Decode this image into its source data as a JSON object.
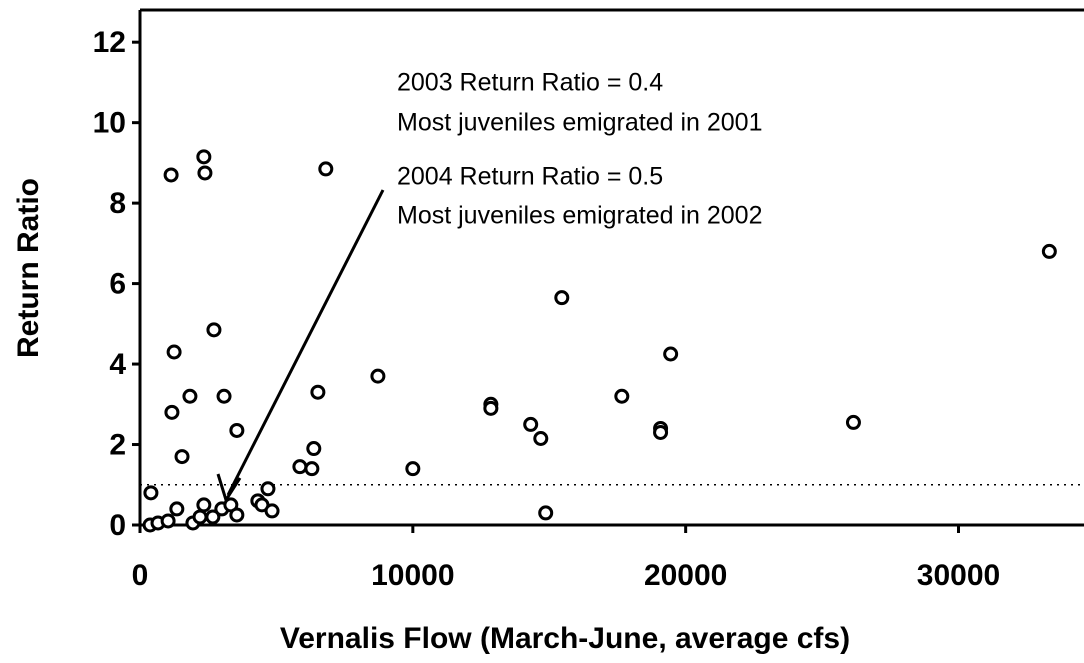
{
  "chart_data": {
    "type": "scatter",
    "x_label": "Vernalis Flow (March-June, average cfs)",
    "y_label": "Return Ratio",
    "annotations": [
      "2003 Return Ratio = 0.4",
      "Most juveniles emigrated in 2001",
      "2004 Return Ratio = 0.5",
      "Most juveniles emigrated in 2002"
    ],
    "xlim": [
      0,
      34600
    ],
    "ylim": [
      0,
      12.8
    ],
    "xticks": [
      0,
      10000,
      20000,
      30000
    ],
    "yticks": [
      0,
      2,
      4,
      6,
      8,
      10,
      12
    ],
    "reference_line": 1,
    "color": "#000000",
    "x": [
      400,
      370,
      660,
      1030,
      1140,
      1250,
      1170,
      1350,
      1540,
      1830,
      1940,
      2200,
      2340,
      2380,
      2340,
      2670,
      2710,
      3000,
      3080,
      3330,
      3550,
      3550,
      4320,
      4470,
      4690,
      4840,
      5860,
      6300,
      6370,
      6520,
      6810,
      8720,
      10000,
      12860,
      12860,
      14320,
      14690,
      14870,
      15460,
      17660,
      19080,
      19080,
      19450,
      26150,
      33330
    ],
    "values": [
      0.8,
      0,
      0.05,
      0.1,
      8.7,
      4.3,
      2.8,
      0.4,
      1.7,
      3.2,
      0.05,
      0.2,
      9.15,
      8.75,
      0.5,
      0.2,
      4.85,
      0.4,
      3.2,
      0.5,
      2.35,
      0.25,
      0.6,
      0.5,
      0.9,
      0.35,
      1.45,
      1.4,
      1.9,
      3.3,
      8.85,
      3.7,
      1.4,
      3.0,
      2.9,
      2.5,
      2.15,
      0.3,
      5.65,
      3.2,
      2.4,
      2.3,
      4.25,
      2.55,
      6.8
    ]
  }
}
